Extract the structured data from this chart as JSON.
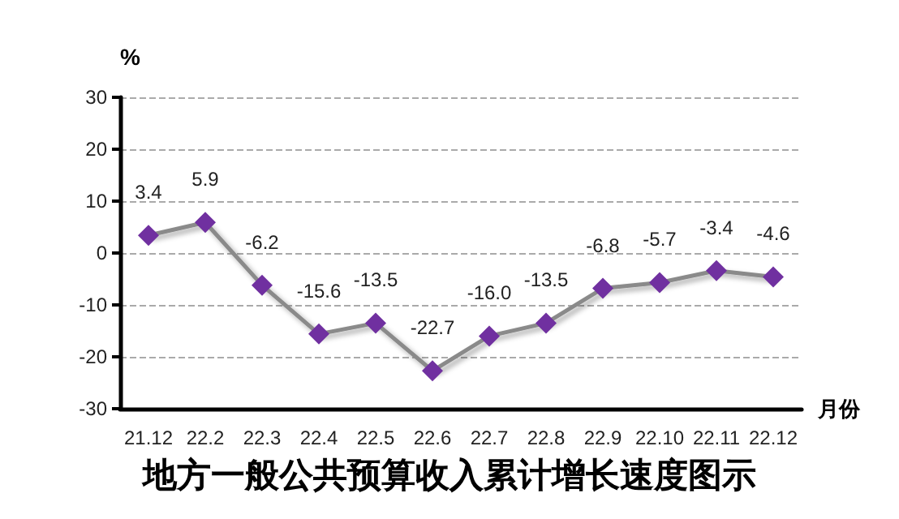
{
  "chart_data": {
    "type": "line",
    "title": "地方一般公共预算收入累计增长速度图示",
    "xlabel": "月份",
    "ylabel": "%",
    "categories": [
      "21.12",
      "22.2",
      "22.3",
      "22.4",
      "22.5",
      "22.6",
      "22.7",
      "22.8",
      "22.9",
      "22.10",
      "22.11",
      "22.12"
    ],
    "series": [
      {
        "color": "#7030a0",
        "values": [
          3.4,
          5.9,
          -6.2,
          -15.6,
          -13.5,
          -22.7,
          -16.0,
          -13.5,
          -6.8,
          -5.7,
          -3.4,
          -4.6
        ],
        "value_labels": [
          "3.4",
          "5.9",
          "-6.2",
          "-15.6",
          "-13.5",
          "-22.7",
          "-16.0",
          "-13.5",
          "-6.8",
          "-5.7",
          "-3.4",
          "-4.6"
        ]
      }
    ],
    "ylim": [
      -30,
      30
    ],
    "yticks": [
      -30,
      -20,
      -10,
      0,
      10,
      20,
      30
    ],
    "grid": "y",
    "marker": "diamond",
    "line_style": "solid"
  }
}
